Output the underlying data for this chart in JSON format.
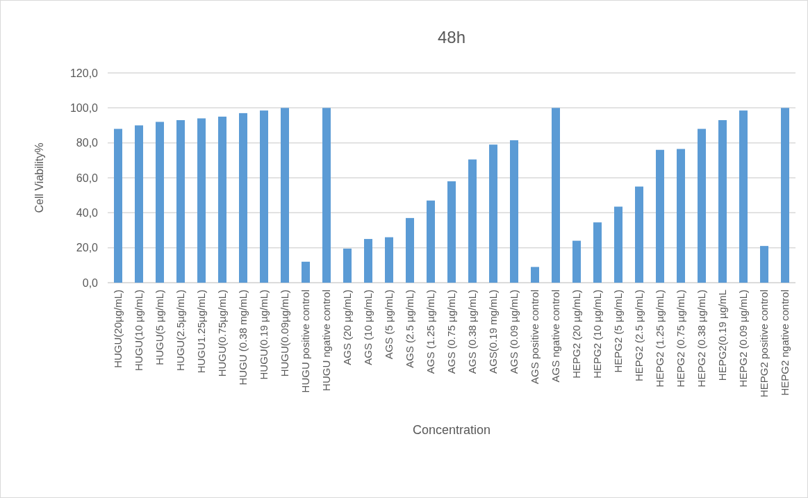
{
  "chart_data": {
    "type": "bar",
    "title": "48h",
    "xlabel": "Concentration",
    "ylabel": "Cell Viability%",
    "categories": [
      "HUGU(20µg/mL)",
      "HUGU(10 µg/mL)",
      "HUGU(5 µg/mL)",
      "HUGU(2.5µg/mL)",
      "HUGU1.25µg/mL)",
      "HUGU(0.75µg/mL)",
      "HUGU (0.38 mg/mL)",
      "HUGU(0.19 µg/mL)",
      "HUGU(0.09µg/mL)",
      "HUGU positive control",
      "HUGU ngative control",
      "AGS (20 µg/mL)",
      "AGS (10 µg/mL)",
      "AGS (5 µg/mL)",
      "AGS (2.5 µg/mL)",
      "AGS (1.25 µg/mL)",
      "AGS (0.75 µg/mL)",
      "AGS (0.38 µg/mL)",
      "AGS(0.19 mg/mL)",
      "AGS (0.09 µg/mL)",
      "AGS positive control",
      "AGS ngative control",
      "HEPG2 (20 µg/mL)",
      "HEPG2 (10 µg/mL)",
      "HEPG2 (5 µg/mL)",
      "HEPG2 (2.5 µg/mL)",
      "HEPG2 (1.25 µg/mL)",
      "HEPG2 (0.75 µg/mL)",
      "HEPG2 (0.38 µg/mL)",
      "HEPG2(0.19 µg/mL",
      "HEPG2 (0.09 µg/mL)",
      "HEPG2 positive control",
      "HEPG2 ngative control"
    ],
    "values": [
      88,
      90,
      92,
      93,
      94,
      95,
      97,
      98.5,
      100,
      12,
      100,
      19.5,
      25,
      26,
      37,
      47,
      58,
      70.5,
      79,
      81.5,
      9,
      100,
      24,
      34.5,
      43.5,
      55,
      76,
      76.5,
      88,
      93,
      98.5,
      21,
      100
    ],
    "color": "#5b9bd5",
    "ylim": [
      0,
      120
    ],
    "yticks": [
      {
        "value": 0,
        "label": "0,0"
      },
      {
        "value": 20,
        "label": "20,0"
      },
      {
        "value": 40,
        "label": "40,0"
      },
      {
        "value": 60,
        "label": "60,0"
      },
      {
        "value": 80,
        "label": "80,0"
      },
      {
        "value": 100,
        "label": "100,0"
      },
      {
        "value": 120,
        "label": "120,0"
      }
    ],
    "grid": "y"
  }
}
